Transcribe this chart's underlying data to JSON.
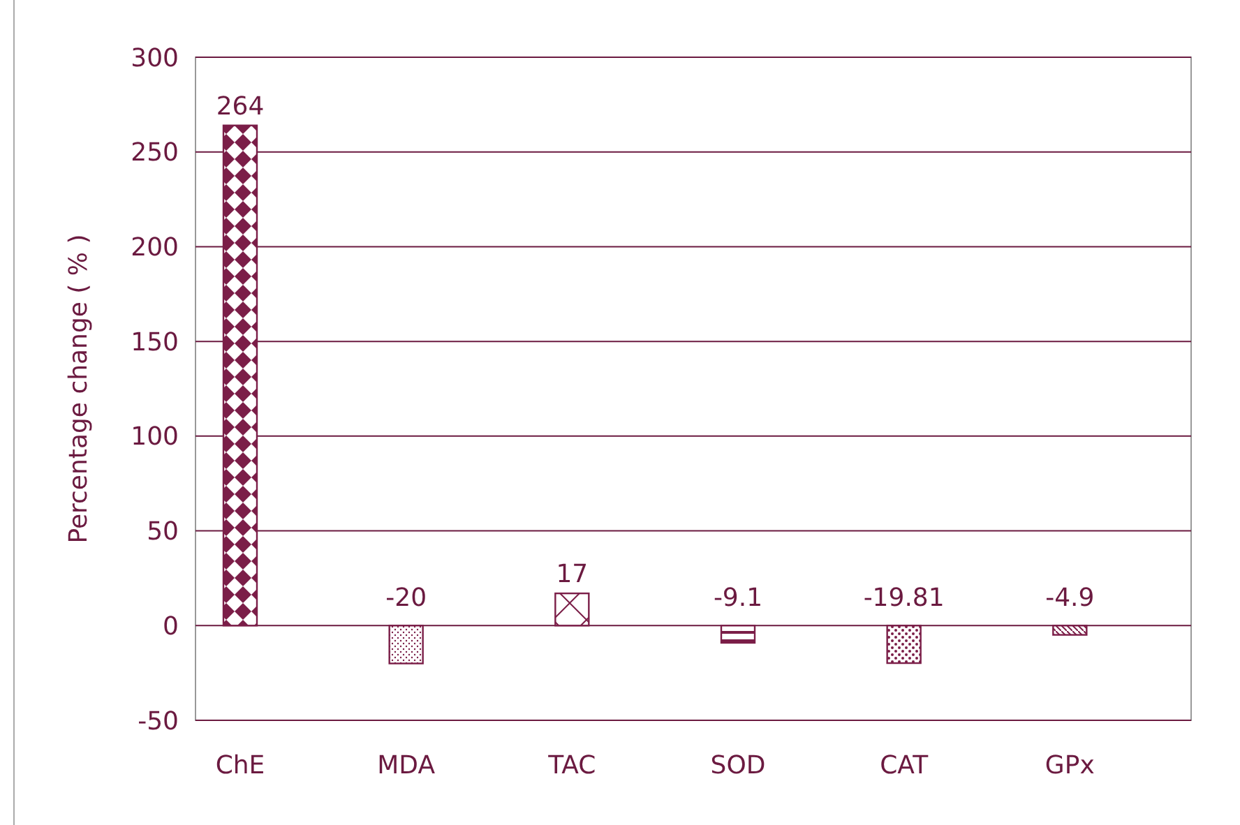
{
  "chart_data": {
    "type": "bar",
    "ylabel": "Percentage change ( % )",
    "categories": [
      "ChE",
      "MDA",
      "TAC",
      "SOD",
      "CAT",
      "GPx"
    ],
    "values": [
      264,
      -20,
      17,
      -9.1,
      -19.81,
      -4.9
    ],
    "colors": [
      "#7b1e48",
      "#7b1e48",
      "#7b1e48",
      "#7b1e48",
      "#7b1e48",
      "#7b1e48"
    ],
    "ylim": [
      -50,
      300
    ],
    "yticks": [
      -50,
      0,
      50,
      100,
      150,
      200,
      250,
      300
    ],
    "grid": "y",
    "data_labels": true
  }
}
